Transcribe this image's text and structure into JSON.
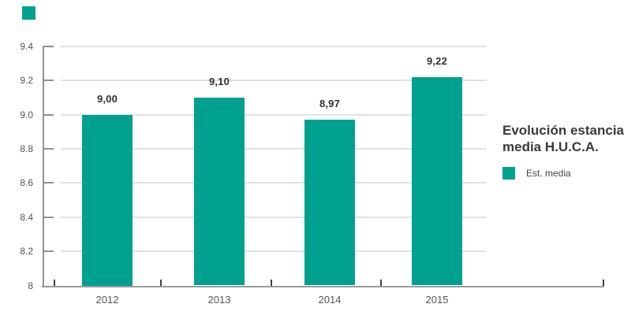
{
  "brand": {
    "mark": "teal-square",
    "color": "#00A18F"
  },
  "side_panel": {
    "title_line1": "Evolución estancia",
    "title_line2": "media H.U.C.A.",
    "legend": {
      "swatch_color": "#00A18F",
      "label": "Est. media"
    }
  },
  "chart_data": {
    "type": "bar",
    "title": "Evolución estancia media H.U.C.A.",
    "series_name": "Est. media",
    "categories": [
      "2012",
      "2013",
      "2014",
      "2015"
    ],
    "values": [
      9.0,
      9.1,
      8.97,
      9.22
    ],
    "value_labels": [
      "9,00",
      "9,10",
      "8,97",
      "9,22"
    ],
    "bar_color": "#00A18F",
    "xlabel": "",
    "ylabel": "",
    "ylim": [
      8,
      9.4
    ],
    "y_ticks": [
      {
        "value": 9.4,
        "label": "9.4"
      },
      {
        "value": 9.2,
        "label": "9.2"
      },
      {
        "value": 9.0,
        "label": "9.0"
      },
      {
        "value": 8.8,
        "label": "8.8"
      },
      {
        "value": 8.6,
        "label": "8.6"
      },
      {
        "value": 8.4,
        "label": "8.4"
      },
      {
        "value": 8.2,
        "label": "8.2"
      },
      {
        "value": 8.0,
        "label": "8"
      }
    ],
    "grid": true,
    "legend_position": "right"
  }
}
